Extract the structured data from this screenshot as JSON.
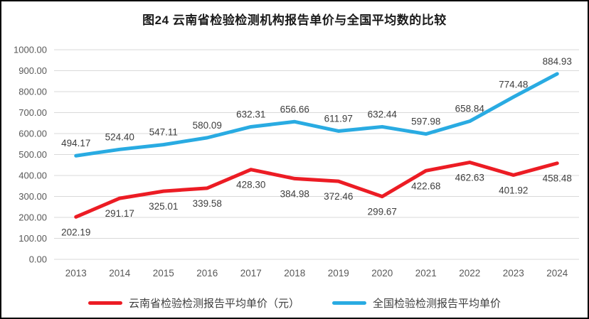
{
  "page": {
    "title": "图24 云南省检验检测机构报告单价与全国平均数的比较"
  },
  "chart_data": {
    "type": "line",
    "title": "图24 云南省检验检测机构报告单价与全国平均数的比较",
    "categories": [
      "2013",
      "2014",
      "2015",
      "2016",
      "2017",
      "2018",
      "2019",
      "2020",
      "2021",
      "2022",
      "2023",
      "2024"
    ],
    "series": [
      {
        "name": "云南省检验检测报告平均单价（元）",
        "color": "#EC1C24",
        "label_position": "below",
        "values": [
          202.19,
          291.17,
          325.01,
          339.58,
          428.3,
          384.98,
          372.46,
          299.67,
          422.68,
          462.63,
          401.92,
          458.48
        ]
      },
      {
        "name": "全国检验检测报告平均单价",
        "color": "#29ABE2",
        "label_position": "above",
        "values": [
          494.17,
          524.4,
          547.11,
          580.09,
          632.31,
          656.66,
          611.97,
          632.44,
          597.98,
          658.84,
          774.48,
          884.93
        ]
      }
    ],
    "ylim": [
      0,
      1000
    ],
    "ytick_step": 100,
    "ytick_format_decimals": 2,
    "grid": "horizontal",
    "legend_position": "bottom",
    "colors": {
      "grid": "#D9D9D9",
      "axis_labels": "#595959",
      "data_labels": "#3D3D3D",
      "title": "#1A1A1A"
    }
  }
}
